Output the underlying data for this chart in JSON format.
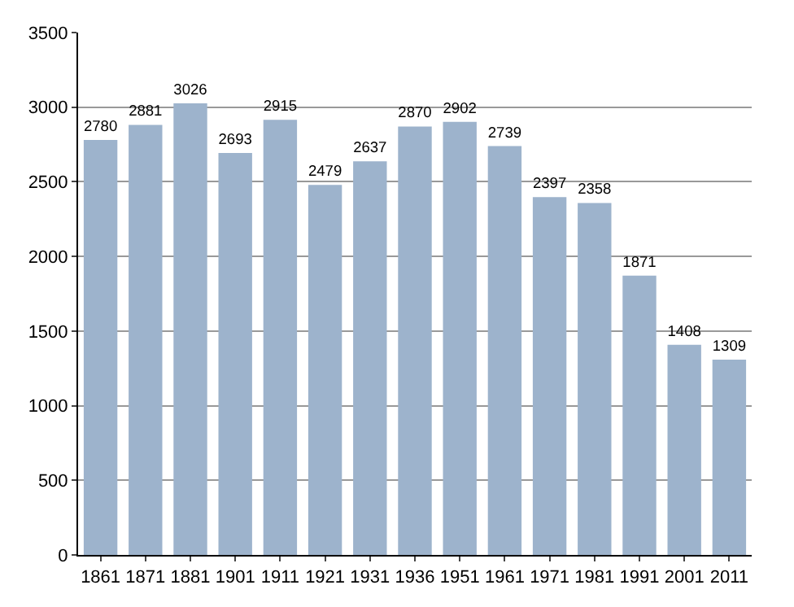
{
  "chart_data": {
    "type": "bar",
    "categories": [
      "1861",
      "1871",
      "1881",
      "1901",
      "1911",
      "1921",
      "1931",
      "1936",
      "1951",
      "1961",
      "1971",
      "1981",
      "1991",
      "2001",
      "2011"
    ],
    "values": [
      2780,
      2881,
      3026,
      2693,
      2915,
      2479,
      2637,
      2870,
      2902,
      2739,
      2397,
      2358,
      1871,
      1408,
      1309
    ],
    "color": "#9db3cc",
    "ylim": [
      0,
      3500
    ],
    "yticks": [
      0,
      500,
      1000,
      1500,
      2000,
      2500,
      3000,
      3500
    ],
    "grid": "y",
    "data_labels": true
  }
}
